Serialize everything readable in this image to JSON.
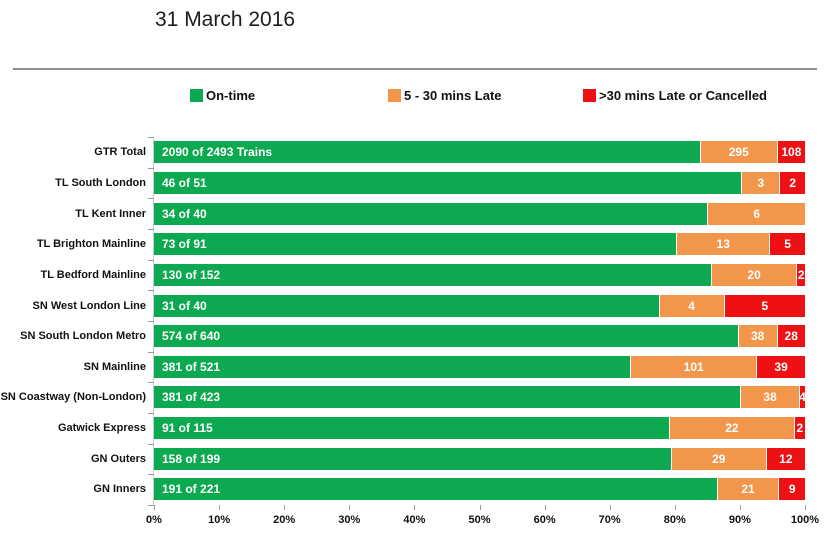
{
  "title": "31 March 2016",
  "legend": [
    {
      "label": "On-time",
      "color": "#0DA951"
    },
    {
      "label": "5 - 30 mins Late",
      "color": "#F2964C"
    },
    {
      "label": ">30 mins Late or Cancelled",
      "color": "#EE1113"
    }
  ],
  "chart_data": {
    "type": "bar",
    "variant": "horizontal-100-percent-stacked",
    "title": "31 March 2016",
    "categories": [
      "GTR Total",
      "TL South London",
      "TL Kent Inner",
      "TL Brighton Mainline",
      "TL Bedford Mainline",
      "SN West London Line",
      "SN South London Metro",
      "SN Mainline",
      "SN Coastway (Non-London)",
      "Gatwick Express",
      "GN Outers",
      "GN Inners"
    ],
    "totals": [
      2493,
      51,
      40,
      91,
      152,
      40,
      640,
      521,
      423,
      115,
      199,
      221
    ],
    "series": [
      {
        "name": "On-time",
        "color": "#0DA951",
        "values": [
          2090,
          46,
          34,
          73,
          130,
          31,
          574,
          381,
          381,
          91,
          158,
          191
        ],
        "labels": [
          "2090 of 2493 Trains",
          "46 of 51",
          "34 of 40",
          "73 of 91",
          "130 of 152",
          "31 of 40",
          "574 of 640",
          "381 of 521",
          "381 of 423",
          "91 of 115",
          "158 of 199",
          "191 of 221"
        ]
      },
      {
        "name": "5 - 30 mins Late",
        "color": "#F2964C",
        "values": [
          295,
          3,
          6,
          13,
          20,
          4,
          38,
          101,
          38,
          22,
          29,
          21
        ]
      },
      {
        "name": ">30 mins Late or Cancelled",
        "color": "#EE1113",
        "values": [
          108,
          2,
          0,
          5,
          2,
          5,
          28,
          39,
          4,
          2,
          12,
          9
        ]
      }
    ],
    "xlabel": "",
    "ylabel": "",
    "xlim": [
      0,
      100
    ],
    "x_tick_labels": [
      "0%",
      "10%",
      "20%",
      "30%",
      "40%",
      "50%",
      "60%",
      "70%",
      "80%",
      "90%",
      "100%"
    ],
    "grid": false,
    "legend_position": "top"
  }
}
